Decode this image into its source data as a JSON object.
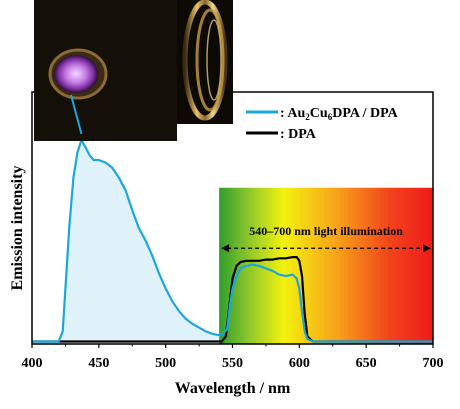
{
  "chart_data": {
    "type": "line",
    "title": "",
    "xlabel": "Wavelength / nm",
    "ylabel": "Emission intensity",
    "xlim": [
      400,
      700
    ],
    "ylim": [
      0,
      1.0
    ],
    "x_ticks": [
      400,
      450,
      500,
      550,
      600,
      650,
      700
    ],
    "grid": false,
    "legend_position": "top-right",
    "colors": {
      "au2cu6": "#1aa7db",
      "dpa": "#000000",
      "fill": "#dff2f9"
    },
    "series": [
      {
        "name_prefix": ": Au",
        "name_sub1": "2",
        "name_mid": "Cu",
        "name_sub2": "6",
        "name_suffix": "DPA / DPA",
        "x": [
          400,
          420,
          423,
          425,
          428,
          431,
          434,
          437,
          440,
          443,
          446,
          450,
          455,
          460,
          465,
          470,
          475,
          480,
          485,
          490,
          495,
          500,
          505,
          510,
          515,
          520,
          525,
          530,
          535,
          540,
          543,
          546,
          548,
          550,
          553,
          556,
          560,
          565,
          570,
          575,
          580,
          585,
          590,
          595,
          598,
          600,
          602,
          604,
          606,
          610,
          700
        ],
        "y": [
          0.01,
          0.01,
          0.05,
          0.22,
          0.47,
          0.66,
          0.76,
          0.81,
          0.78,
          0.75,
          0.73,
          0.73,
          0.72,
          0.7,
          0.66,
          0.61,
          0.53,
          0.46,
          0.41,
          0.35,
          0.28,
          0.22,
          0.17,
          0.13,
          0.1,
          0.08,
          0.065,
          0.05,
          0.04,
          0.035,
          0.04,
          0.06,
          0.15,
          0.22,
          0.27,
          0.3,
          0.31,
          0.315,
          0.31,
          0.3,
          0.29,
          0.275,
          0.27,
          0.275,
          0.26,
          0.22,
          0.13,
          0.05,
          0.02,
          0.01,
          0.01
        ]
      },
      {
        "name": ": DPA",
        "x": [
          400,
          542,
          545,
          547,
          550,
          553,
          556,
          560,
          565,
          570,
          575,
          580,
          585,
          590,
          595,
          598,
          600,
          602,
          604,
          606,
          610,
          700
        ],
        "y": [
          0.01,
          0.01,
          0.03,
          0.12,
          0.26,
          0.31,
          0.325,
          0.33,
          0.33,
          0.33,
          0.335,
          0.335,
          0.34,
          0.34,
          0.345,
          0.345,
          0.33,
          0.27,
          0.12,
          0.03,
          0.01,
          0.01
        ]
      }
    ],
    "annotation": {
      "text": "540–700 nm light illumination",
      "x_range": [
        540,
        700
      ],
      "y": 0.38
    },
    "gradient_region": {
      "x_range": [
        540,
        700
      ],
      "y_top": 0.62
    },
    "inset_photo": {
      "description_icon": "purple-glow-photo"
    }
  }
}
